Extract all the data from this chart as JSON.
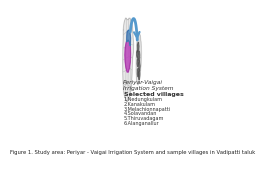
{
  "title": "Figure 1. Study area: Periyar - Vaigai Irrigation System and sample villages in Vadipatti taluk",
  "label_irrigation": "Periyar-Vaigai\nIrrigation System",
  "label_villages_title": "Selected villages",
  "villages": [
    "1.Nedungkulam",
    "2.Kanakulam",
    "3.Melachionnapatti",
    "4.Solavandan",
    "5.Thiruvadagam",
    "6.Alanganallur"
  ],
  "map_fill": "#e8e8e8",
  "map_outline": "#aaaaaa",
  "purple_fill": "#bb44bb",
  "blue_fill": "#5588bb",
  "inset_fill": "#888888",
  "arrow_color": "#5599cc",
  "text_color": "#333333",
  "font_size_label": 4.2,
  "font_size_village": 3.5,
  "font_size_title": 3.8
}
